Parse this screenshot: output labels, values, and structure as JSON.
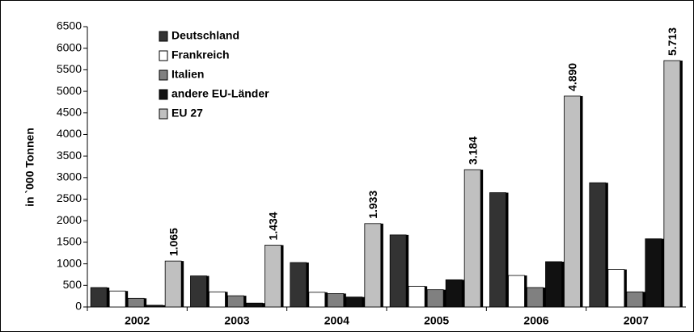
{
  "chart_data": {
    "type": "bar",
    "ylabel": "in `000 Tonnen",
    "categories": [
      "2002",
      "2003",
      "2004",
      "2005",
      "2006",
      "2007"
    ],
    "series": [
      {
        "name": "Deutschland",
        "color": "#333333",
        "values": [
          450,
          720,
          1030,
          1670,
          2650,
          2880
        ]
      },
      {
        "name": "Frankreich",
        "color": "#ffffff",
        "values": [
          370,
          350,
          340,
          480,
          730,
          870
        ]
      },
      {
        "name": "Italien",
        "color": "#808080",
        "values": [
          200,
          260,
          310,
          400,
          450,
          350
        ]
      },
      {
        "name": "andere EU-Länder",
        "color": "#111111",
        "values": [
          40,
          90,
          230,
          630,
          1050,
          1580
        ]
      },
      {
        "name": "EU 27",
        "color": "#c0c0c0",
        "values": [
          1065,
          1434,
          1933,
          3184,
          4890,
          5713
        ],
        "value_labels": [
          "1.065",
          "1.434",
          "1.933",
          "3.184",
          "4.890",
          "5.713"
        ]
      }
    ],
    "ylim": [
      0,
      6500
    ],
    "yticks": [
      0,
      500,
      1000,
      1500,
      2000,
      2500,
      3000,
      3500,
      4000,
      4500,
      5000,
      5500,
      6000,
      6500
    ],
    "legend": "upper left",
    "grid": false
  }
}
